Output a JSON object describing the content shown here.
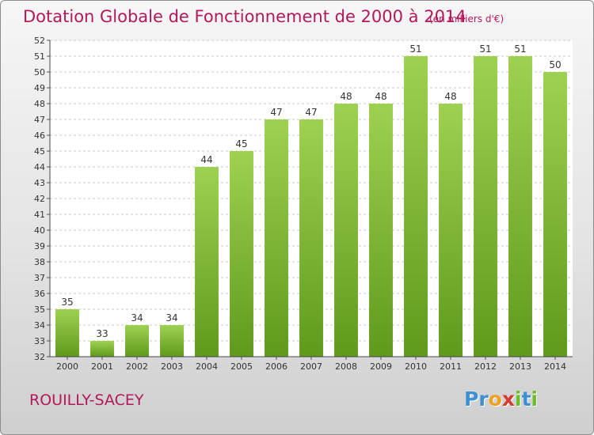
{
  "chart_data": {
    "type": "bar",
    "title": "Dotation Globale de Fonctionnement de 2000 à 2014",
    "subtitle": "(en milliers d'€)",
    "categories": [
      "2000",
      "2001",
      "2002",
      "2003",
      "2004",
      "2005",
      "2006",
      "2007",
      "2008",
      "2009",
      "2010",
      "2011",
      "2012",
      "2013",
      "2014"
    ],
    "values": [
      35,
      33,
      34,
      34,
      44,
      45,
      47,
      47,
      48,
      48,
      51,
      48,
      51,
      51,
      50
    ],
    "ylim": [
      32,
      52
    ],
    "yticks": [
      32,
      33,
      34,
      35,
      36,
      37,
      38,
      39,
      40,
      41,
      42,
      43,
      44,
      45,
      46,
      47,
      48,
      49,
      50,
      51,
      52
    ],
    "grid": true,
    "bar_color_top": "#9ed152",
    "bar_color_bottom": "#5f9a1c"
  },
  "commune": "ROUILLY-SACEY",
  "logo": {
    "letters": [
      "P",
      "r",
      "o",
      "x",
      "i",
      "t",
      "i"
    ],
    "colors": [
      "#3c8fd2",
      "#3c8fd2",
      "#f0a020",
      "#d63a2e",
      "#6cbf2a",
      "#3c8fd2",
      "#6cbf2a"
    ]
  }
}
